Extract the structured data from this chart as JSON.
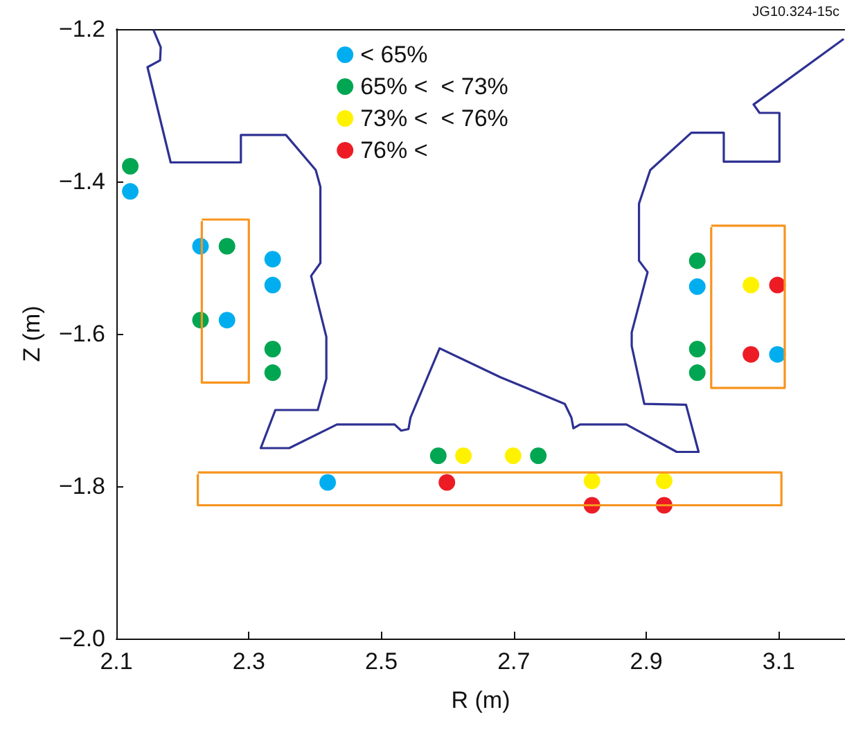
{
  "chart_data": {
    "type": "scatter",
    "xlabel": "R (m)",
    "ylabel": "Z (m)",
    "annotations": [
      "JG10.324-15c"
    ],
    "xlim": [
      2.1,
      3.2
    ],
    "xticks": [
      2.1,
      2.3,
      2.5,
      2.7,
      2.9,
      3.1
    ],
    "ylim": [
      -2.0,
      -1.2
    ],
    "yticks": [
      {
        "value": -2.0,
        "label": "−2.0"
      },
      {
        "value": -1.8,
        "label": "−1.8"
      },
      {
        "value": -1.6,
        "label": "−1.6"
      },
      {
        "value": -1.4,
        "label": "−1.4"
      },
      {
        "value": -1.2,
        "label": "−1.2"
      }
    ],
    "grid": false,
    "legend": "top",
    "marker": "circle",
    "series": [
      {
        "type": "line",
        "color": "#2e3192",
        "x": [
          2.156,
          2.167,
          2.166,
          2.147,
          2.182,
          2.288,
          2.288,
          2.356,
          2.401,
          2.408,
          2.408,
          2.394,
          2.417,
          2.417,
          2.404,
          2.34,
          2.318,
          2.361,
          2.433,
          2.52,
          2.53,
          2.541,
          2.544,
          2.588,
          2.68,
          2.777,
          2.787,
          2.79,
          2.8,
          2.87,
          2.946,
          2.979,
          2.96,
          2.897,
          2.878,
          2.878,
          2.902,
          2.889,
          2.889,
          2.906,
          2.968,
          3.017,
          3.017,
          3.101,
          3.101,
          3.071,
          3.062,
          3.198
        ],
        "values": [
          -1.201,
          -1.224,
          -1.241,
          -1.25,
          -1.375,
          -1.375,
          -1.339,
          -1.339,
          -1.385,
          -1.407,
          -1.507,
          -1.524,
          -1.604,
          -1.659,
          -1.7,
          -1.7,
          -1.75,
          -1.75,
          -1.719,
          -1.719,
          -1.727,
          -1.725,
          -1.71,
          -1.619,
          -1.657,
          -1.692,
          -1.71,
          -1.724,
          -1.719,
          -1.719,
          -1.755,
          -1.755,
          -1.693,
          -1.692,
          -1.616,
          -1.598,
          -1.519,
          -1.504,
          -1.429,
          -1.385,
          -1.336,
          -1.336,
          -1.374,
          -1.374,
          -1.31,
          -1.31,
          -1.299,
          -1.213
        ],
        "marker": "none"
      },
      {
        "type": "line",
        "color": "#f7941d",
        "x": [
          2.229,
          2.3,
          2.3,
          2.229,
          2.229
        ],
        "values": [
          -1.45,
          -1.45,
          -1.664,
          -1.664,
          -1.452
        ],
        "marker": "none"
      },
      {
        "type": "line",
        "color": "#f7941d",
        "x": [
          2.998,
          3.109,
          3.109,
          2.998,
          2.998
        ],
        "values": [
          -1.458,
          -1.458,
          -1.671,
          -1.671,
          -1.46
        ],
        "marker": "none"
      },
      {
        "type": "line",
        "color": "#f7941d",
        "x": [
          2.223,
          3.104,
          3.104,
          2.223,
          2.223
        ],
        "values": [
          -1.782,
          -1.782,
          -1.825,
          -1.825,
          -1.784
        ],
        "marker": "none"
      },
      {
        "name": "< 65%",
        "color": "#00aeef",
        "x": [
          2.121,
          2.227,
          2.267,
          2.336,
          2.336,
          2.419,
          2.977,
          3.098
        ],
        "values": [
          -1.413,
          -1.485,
          -1.582,
          -1.502,
          -1.536,
          -1.795,
          -1.538,
          -1.627
        ]
      },
      {
        "name": "65% <  < 73%",
        "color": "#00a651",
        "x": [
          2.121,
          2.267,
          2.227,
          2.336,
          2.336,
          2.586,
          2.737,
          2.977,
          2.977,
          2.977
        ],
        "values": [
          -1.38,
          -1.485,
          -1.582,
          -1.62,
          -1.651,
          -1.76,
          -1.76,
          -1.504,
          -1.62,
          -1.651
        ]
      },
      {
        "name": "73% <  < 76%",
        "color": "#fff200",
        "x": [
          2.624,
          2.699,
          2.818,
          2.927,
          3.058
        ],
        "values": [
          -1.76,
          -1.76,
          -1.793,
          -1.793,
          -1.536
        ]
      },
      {
        "name": "76% <",
        "color": "#ed1c24",
        "x": [
          2.599,
          2.818,
          2.927,
          3.098,
          3.058
        ],
        "values": [
          -1.795,
          -1.825,
          -1.825,
          -1.536,
          -1.627
        ]
      }
    ]
  }
}
